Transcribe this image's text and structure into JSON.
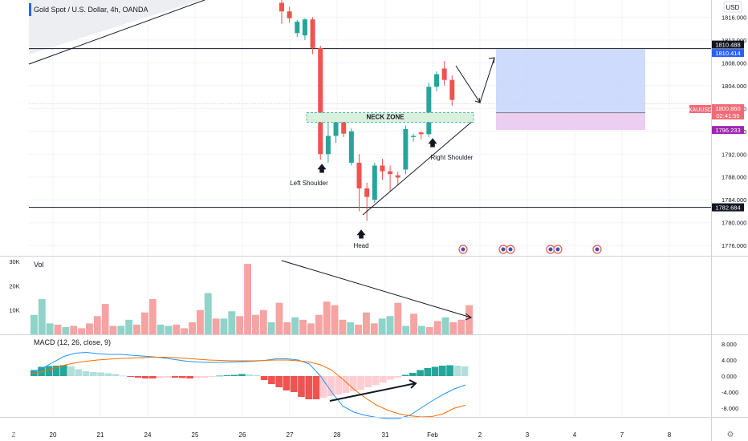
{
  "header": {
    "symbol_title": "Gold Spot / U.S. Dollar, 4h, OANDA",
    "currency": "USD"
  },
  "colors": {
    "up": "#26a69a",
    "down": "#ef5350",
    "volume_up": "#8fd3c9",
    "volume_down": "#f5a3a3",
    "macd_line": "#2196f3",
    "signal_line": "#ff6d00",
    "target_zone": "#c6d5fb",
    "stop_zone": "#e9c5f0",
    "neck_zone": "#d9f0dc",
    "price_label": "#f06b76",
    "level_label": "#131722"
  },
  "chart_data": [
    {
      "type": "candlestick",
      "name": "price-panel",
      "x_ticks": [
        "20",
        "21",
        "24",
        "25",
        "26",
        "27",
        "28",
        "31",
        "Feb",
        "2",
        "3",
        "4",
        "7",
        "8"
      ],
      "y_ticks": [
        "1816.000",
        "1812.000",
        "1808.000",
        "1804.000",
        "1800.000",
        "1796.000",
        "1792.000",
        "1788.000",
        "1784.000",
        "1780.000",
        "1776.000"
      ],
      "ylim": [
        1774.2,
        1819.0
      ],
      "candles": [
        {
          "o": 1818.5,
          "h": 1819.5,
          "l": 1814.8,
          "c": 1817.0
        },
        {
          "o": 1817.0,
          "h": 1817.8,
          "l": 1815.0,
          "c": 1815.8
        },
        {
          "o": 1813.2,
          "h": 1815.5,
          "l": 1812.5,
          "c": 1815.2
        },
        {
          "o": 1812.8,
          "h": 1815.8,
          "l": 1812.0,
          "c": 1815.6
        },
        {
          "o": 1815.6,
          "h": 1816.0,
          "l": 1809.5,
          "c": 1810.6
        },
        {
          "o": 1810.6,
          "h": 1811.0,
          "l": 1791.0,
          "c": 1792.0
        },
        {
          "o": 1792.0,
          "h": 1797.5,
          "l": 1790.5,
          "c": 1795.2
        },
        {
          "o": 1795.2,
          "h": 1798.6,
          "l": 1794.0,
          "c": 1797.8
        },
        {
          "o": 1797.6,
          "h": 1797.9,
          "l": 1795.0,
          "c": 1795.6
        },
        {
          "o": 1790.5,
          "h": 1796.5,
          "l": 1790.0,
          "c": 1796.0
        },
        {
          "o": 1790.5,
          "h": 1792.0,
          "l": 1782.0,
          "c": 1786.0
        },
        {
          "o": 1786.0,
          "h": 1787.0,
          "l": 1780.3,
          "c": 1784.5
        },
        {
          "o": 1784.0,
          "h": 1790.5,
          "l": 1783.5,
          "c": 1790.0
        },
        {
          "o": 1790.0,
          "h": 1791.2,
          "l": 1787.5,
          "c": 1789.0
        },
        {
          "o": 1789.0,
          "h": 1790.0,
          "l": 1785.5,
          "c": 1788.5
        },
        {
          "o": 1788.3,
          "h": 1788.9,
          "l": 1786.5,
          "c": 1787.9
        },
        {
          "o": 1789.3,
          "h": 1797.0,
          "l": 1788.5,
          "c": 1796.4
        },
        {
          "o": 1795.0,
          "h": 1795.6,
          "l": 1794.2,
          "c": 1795.2
        },
        {
          "o": 1795.8,
          "h": 1796.0,
          "l": 1794.6,
          "c": 1795.5
        },
        {
          "o": 1795.5,
          "h": 1804.5,
          "l": 1795.0,
          "c": 1803.8
        },
        {
          "o": 1803.8,
          "h": 1806.5,
          "l": 1803.0,
          "c": 1806.0
        },
        {
          "o": 1807.0,
          "h": 1808.3,
          "l": 1804.0,
          "c": 1805.0
        },
        {
          "o": 1805.0,
          "h": 1805.8,
          "l": 1800.5,
          "c": 1801.5
        }
      ],
      "levels": [
        {
          "value": 1810.488,
          "label": "1810.488",
          "color": "#131722"
        },
        {
          "value": 1810.414,
          "label": "1810.414",
          "color": "#2962ff"
        },
        {
          "value": 1800.86,
          "label": "1800.860",
          "color": "#f06b76"
        },
        {
          "value": 1799.251,
          "label": "1799.251",
          "color": "#787b86"
        },
        {
          "value": 1796.233,
          "label": "1796.233",
          "color": "#9c27b0"
        },
        {
          "value": 1782.684,
          "label": "1782.684",
          "color": "#131722"
        }
      ],
      "price_tag": {
        "symbol": "XAUUSD",
        "value": "1800.860",
        "countdown": "02:41:55"
      },
      "position": {
        "entry": 1799.251,
        "target": 1810.414,
        "stop": 1796.233
      },
      "neck_zone": {
        "label": "NECK ZONE",
        "from": 1798.0,
        "to": 1799.0
      },
      "annotations": [
        "Left Shoulder",
        "Head",
        "Right Shoulder"
      ]
    },
    {
      "type": "bar",
      "name": "volume-panel",
      "title": "Vol",
      "y_ticks": [
        "30K",
        "20K",
        "10K"
      ],
      "ylim": [
        0,
        32000
      ],
      "values": [
        8000,
        14500,
        4500,
        4000,
        3000,
        3500,
        2500,
        4500,
        7500,
        12500,
        3500,
        3500,
        6000,
        4000,
        9000,
        14500,
        4000,
        3500,
        4000,
        2500,
        5000,
        10000,
        17000,
        6500,
        6500,
        9500,
        7500,
        29000,
        8000,
        10000,
        5000,
        13000,
        5000,
        7000,
        6000,
        4500,
        8000,
        13500,
        12000,
        6000,
        5000,
        4000,
        9000,
        4500,
        6500,
        7500,
        13000,
        3500,
        8500,
        3500,
        3000,
        5500,
        7000,
        5000,
        6000,
        12000
      ],
      "up": [
        1,
        1,
        1,
        0,
        1,
        0,
        0,
        0,
        0,
        0,
        0,
        1,
        1,
        0,
        0,
        0,
        1,
        1,
        0,
        0,
        0,
        0,
        1,
        0,
        1,
        1,
        0,
        0,
        0,
        0,
        1,
        0,
        0,
        1,
        0,
        0,
        0,
        0,
        0,
        0,
        1,
        0,
        0,
        0,
        1,
        1,
        0,
        1,
        0,
        1,
        0,
        0,
        1,
        0,
        0,
        0
      ]
    },
    {
      "type": "line",
      "name": "macd-panel",
      "title": "MACD (12, 26, close, 9)",
      "y_ticks": [
        "8.000",
        "4.000",
        "0.000",
        "-4.000",
        "-8.000"
      ],
      "ylim": [
        -10.2,
        10.2
      ],
      "histogram": [
        1.5,
        2.3,
        2.5,
        2.6,
        2.7,
        2.4,
        1.7,
        1.2,
        1.0,
        0.9,
        0.7,
        0.5,
        0.1,
        -0.2,
        -0.4,
        -0.6,
        -0.6,
        -0.5,
        -0.4,
        -0.4,
        -0.5,
        -0.6,
        -0.5,
        -0.4,
        -0.2,
        0.1,
        0.2,
        0.3,
        0.5,
        0.4,
        0.2,
        -1.0,
        -2.0,
        -2.8,
        -3.6,
        -4.0,
        -5.2,
        -5.8,
        -5.8,
        -5.4,
        -5.0,
        -4.6,
        -4.2,
        -3.8,
        -3.4,
        -2.8,
        -2.2,
        -1.6,
        -0.9,
        -0.4,
        0.3,
        0.8,
        1.5,
        2.0,
        2.3,
        2.6,
        2.7,
        2.6,
        2.4
      ],
      "macd": [
        0.8,
        1.8,
        3.4,
        4.9,
        5.7,
        5.9,
        5.6,
        5.4,
        5.4,
        5.2,
        5.0,
        4.8,
        4.5,
        4.1,
        3.7,
        3.5,
        3.4,
        3.4,
        3.5,
        3.6,
        3.7,
        3.9,
        4.3,
        4.3,
        4.0,
        3.0,
        0.0,
        -4.0,
        -7.5,
        -9.0,
        -9.8,
        -10.3,
        -10.6,
        -10.6,
        -9.8,
        -8.0,
        -6.2,
        -4.6,
        -3.2,
        -2.2
      ],
      "signal": [
        0.5,
        1.1,
        1.9,
        2.7,
        3.3,
        3.7,
        4.0,
        4.2,
        4.4,
        4.5,
        4.6,
        4.7,
        4.7,
        4.6,
        4.4,
        4.2,
        4.0,
        3.9,
        3.8,
        3.8,
        3.8,
        3.9,
        4.0,
        4.0,
        3.8,
        3.5,
        2.8,
        1.5,
        -0.8,
        -3.3,
        -5.4,
        -7.2,
        -8.5,
        -9.4,
        -9.9,
        -10.2,
        -10.1,
        -9.4,
        -8.0,
        -7.3
      ]
    }
  ],
  "time_axis": {
    "zoom_label": "Z",
    "settings_label": "⚙"
  }
}
